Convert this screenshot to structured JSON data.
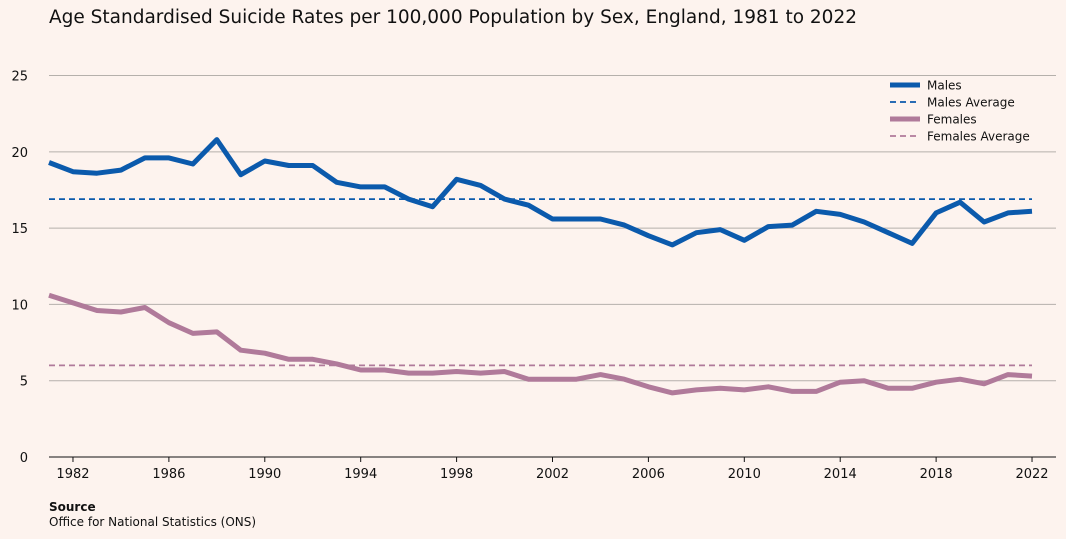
{
  "title": "Age Standardised Suicide Rates per 100,000 Population by Sex, England, 1981 to 2022",
  "source": {
    "heading": "Source",
    "text": "Office for National Statistics (ONS)"
  },
  "colors": {
    "background": "#fdf3ee",
    "males": "#0b5aac",
    "females": "#b07a9a",
    "grid": "#b5b0ab",
    "axis": "#111111"
  },
  "chart_data": {
    "type": "line",
    "title": "Age Standardised Suicide Rates per 100,000 Population by Sex, England, 1981 to 2022",
    "xlabel": "",
    "ylabel": "",
    "xlim": [
      1981,
      2023
    ],
    "ylim": [
      0,
      27
    ],
    "x_ticks": [
      1982,
      1986,
      1990,
      1994,
      1998,
      2002,
      2006,
      2010,
      2014,
      2018,
      2022
    ],
    "y_ticks": [
      0,
      5,
      10,
      15,
      20,
      25
    ],
    "grid": "horizontal",
    "legend_position": "top-right",
    "x": [
      1981,
      1982,
      1983,
      1984,
      1985,
      1986,
      1987,
      1988,
      1989,
      1990,
      1991,
      1992,
      1993,
      1994,
      1995,
      1996,
      1997,
      1998,
      1999,
      2000,
      2001,
      2002,
      2003,
      2004,
      2005,
      2006,
      2007,
      2008,
      2009,
      2010,
      2011,
      2012,
      2013,
      2014,
      2015,
      2016,
      2017,
      2018,
      2019,
      2020,
      2021,
      2022
    ],
    "series": [
      {
        "name": "Males",
        "style": "solid",
        "values": [
          19.3,
          18.7,
          18.6,
          18.8,
          19.6,
          19.6,
          19.2,
          20.8,
          18.5,
          19.4,
          19.1,
          19.1,
          18.0,
          17.7,
          17.7,
          16.9,
          16.4,
          18.2,
          17.8,
          16.9,
          16.5,
          15.6,
          15.6,
          15.6,
          15.2,
          14.5,
          13.9,
          14.7,
          14.9,
          14.2,
          15.1,
          15.2,
          16.1,
          15.9,
          15.4,
          14.7,
          14.0,
          16.0,
          16.7,
          15.4,
          16.0,
          16.1
        ]
      },
      {
        "name": "Males Average",
        "style": "dashed",
        "values": [
          16.9,
          16.9,
          16.9,
          16.9,
          16.9,
          16.9,
          16.9,
          16.9,
          16.9,
          16.9,
          16.9,
          16.9,
          16.9,
          16.9,
          16.9,
          16.9,
          16.9,
          16.9,
          16.9,
          16.9,
          16.9,
          16.9,
          16.9,
          16.9,
          16.9,
          16.9,
          16.9,
          16.9,
          16.9,
          16.9,
          16.9,
          16.9,
          16.9,
          16.9,
          16.9,
          16.9,
          16.9,
          16.9,
          16.9,
          16.9,
          16.9,
          16.9
        ]
      },
      {
        "name": "Females",
        "style": "solid",
        "values": [
          10.6,
          10.1,
          9.6,
          9.5,
          9.8,
          8.8,
          8.1,
          8.2,
          7.0,
          6.8,
          6.4,
          6.4,
          6.1,
          5.7,
          5.7,
          5.5,
          5.5,
          5.6,
          5.5,
          5.6,
          5.1,
          5.1,
          5.1,
          5.4,
          5.1,
          4.6,
          4.2,
          4.4,
          4.5,
          4.4,
          4.6,
          4.3,
          4.3,
          4.9,
          5.0,
          4.5,
          4.5,
          4.9,
          5.1,
          4.8,
          5.4,
          5.3
        ]
      },
      {
        "name": "Females Average",
        "style": "dashed",
        "values": [
          6.0,
          6.0,
          6.0,
          6.0,
          6.0,
          6.0,
          6.0,
          6.0,
          6.0,
          6.0,
          6.0,
          6.0,
          6.0,
          6.0,
          6.0,
          6.0,
          6.0,
          6.0,
          6.0,
          6.0,
          6.0,
          6.0,
          6.0,
          6.0,
          6.0,
          6.0,
          6.0,
          6.0,
          6.0,
          6.0,
          6.0,
          6.0,
          6.0,
          6.0,
          6.0,
          6.0,
          6.0,
          6.0,
          6.0,
          6.0,
          6.0,
          6.0
        ]
      }
    ]
  }
}
